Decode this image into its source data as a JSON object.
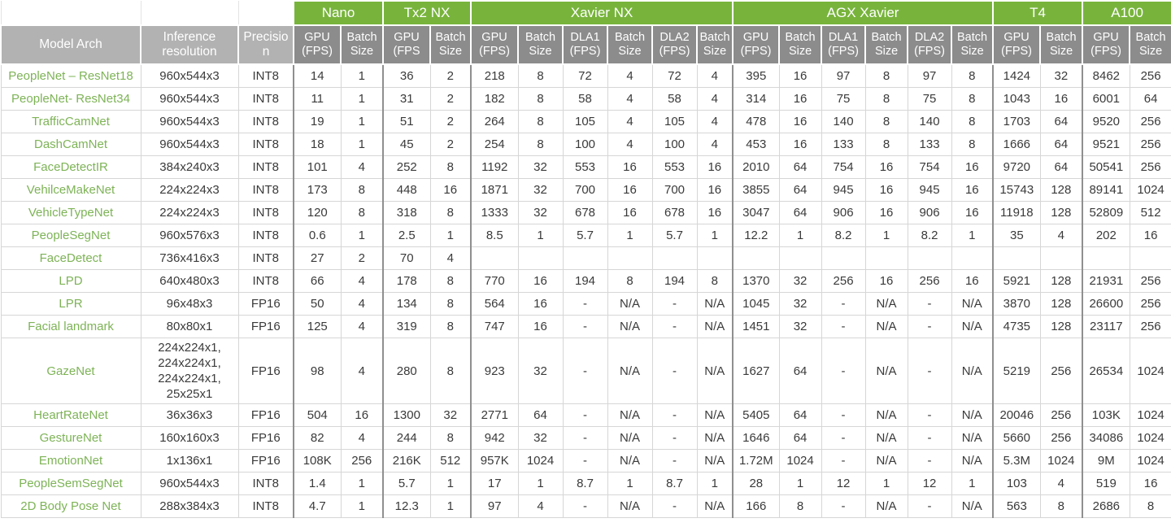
{
  "colors": {
    "header_green": "#78b43c",
    "subheader_gray": "#8c8c8c",
    "lightheader_gray": "#b2b2b2",
    "model_text_green": "#7db356",
    "data_text": "#3a3a3a"
  },
  "table": {
    "static_headers": [
      "Model Arch",
      "Inference resolution",
      "Precision"
    ],
    "groups": [
      {
        "label": "Nano",
        "cols": 2
      },
      {
        "label": "Tx2 NX",
        "cols": 2
      },
      {
        "label": "Xavier NX",
        "cols": 6
      },
      {
        "label": "AGX Xavier",
        "cols": 6
      },
      {
        "label": "T4",
        "cols": 2
      },
      {
        "label": "A100",
        "cols": 2
      }
    ],
    "sub_headers": [
      "GPU (FPS)",
      "Batch Size",
      "GPU (FPS",
      "Batch Size",
      "GPU (FPS)",
      "Batch Size",
      "DLA1 (FPS)",
      "Batch Size",
      "DLA2 (FPS)",
      "Batch Size",
      "GPU (FPS)",
      "Batch Size",
      "DLA1 (FPS)",
      "Batch Size",
      "DLA2 (FPS)",
      "Batch Size",
      "GPU (FPS)",
      "Batch Size",
      "GPU (FPS)",
      "Batch Size"
    ],
    "rows": [
      {
        "model": "PeopleNet – ResNet18",
        "resolution": "960x544x3",
        "precision": "INT8",
        "values": [
          "14",
          "1",
          "36",
          "2",
          "218",
          "8",
          "72",
          "4",
          "72",
          "4",
          "395",
          "16",
          "97",
          "8",
          "97",
          "8",
          "1424",
          "32",
          "8462",
          "256"
        ]
      },
      {
        "model": "PeopleNet- ResNet34",
        "resolution": "960x544x3",
        "precision": "INT8",
        "values": [
          "11",
          "1",
          "31",
          "2",
          "182",
          "8",
          "58",
          "4",
          "58",
          "4",
          "314",
          "16",
          "75",
          "8",
          "75",
          "8",
          "1043",
          "16",
          "6001",
          "64"
        ]
      },
      {
        "model": "TrafficCamNet",
        "resolution": "960x544x3",
        "precision": "INT8",
        "values": [
          "19",
          "1",
          "51",
          "2",
          "264",
          "8",
          "105",
          "4",
          "105",
          "4",
          "478",
          "16",
          "140",
          "8",
          "140",
          "8",
          "1703",
          "64",
          "9520",
          "256"
        ]
      },
      {
        "model": "DashCamNet",
        "resolution": "960x544x3",
        "precision": "INT8",
        "values": [
          "18",
          "1",
          "45",
          "2",
          "254",
          "8",
          "100",
          "4",
          "100",
          "4",
          "453",
          "16",
          "133",
          "8",
          "133",
          "8",
          "1666",
          "64",
          "9521",
          "256"
        ]
      },
      {
        "model": "FaceDetectIR",
        "resolution": "384x240x3",
        "precision": "INT8",
        "values": [
          "101",
          "4",
          "252",
          "8",
          "1192",
          "32",
          "553",
          "16",
          "553",
          "16",
          "2010",
          "64",
          "754",
          "16",
          "754",
          "16",
          "9720",
          "64",
          "50541",
          "256"
        ]
      },
      {
        "model": "VehilceMakeNet",
        "resolution": "224x224x3",
        "precision": "INT8",
        "values": [
          "173",
          "8",
          "448",
          "16",
          "1871",
          "32",
          "700",
          "16",
          "700",
          "16",
          "3855",
          "64",
          "945",
          "16",
          "945",
          "16",
          "15743",
          "128",
          "89141",
          "1024"
        ]
      },
      {
        "model": "VehicleTypeNet",
        "resolution": "224x224x3",
        "precision": "INT8",
        "values": [
          "120",
          "8",
          "318",
          "8",
          "1333",
          "32",
          "678",
          "16",
          "678",
          "16",
          "3047",
          "64",
          "906",
          "16",
          "906",
          "16",
          "11918",
          "128",
          "52809",
          "512"
        ]
      },
      {
        "model": "PeopleSegNet",
        "resolution": "960x576x3",
        "precision": "INT8",
        "values": [
          "0.6",
          "1",
          "2.5",
          "1",
          "8.5",
          "1",
          "5.7",
          "1",
          "5.7",
          "1",
          "12.2",
          "1",
          "8.2",
          "1",
          "8.2",
          "1",
          "35",
          "4",
          "202",
          "16"
        ]
      },
      {
        "model": "FaceDetect",
        "resolution": "736x416x3",
        "precision": "INT8",
        "values": [
          "27",
          "2",
          "70",
          "4",
          "",
          "",
          "",
          "",
          "",
          "",
          "",
          "",
          "",
          "",
          "",
          "",
          "",
          "",
          "",
          ""
        ]
      },
      {
        "model": "LPD",
        "resolution": "640x480x3",
        "precision": "INT8",
        "values": [
          "66",
          "4",
          "178",
          "8",
          "770",
          "16",
          "194",
          "8",
          "194",
          "8",
          "1370",
          "32",
          "256",
          "16",
          "256",
          "16",
          "5921",
          "128",
          "21931",
          "256"
        ]
      },
      {
        "model": "LPR",
        "resolution": "96x48x3",
        "precision": "FP16",
        "values": [
          "50",
          "4",
          "134",
          "8",
          "564",
          "16",
          "-",
          "N/A",
          "-",
          "N/A",
          "1045",
          "32",
          "-",
          "N/A",
          "-",
          "N/A",
          "3870",
          "128",
          "26600",
          "256"
        ]
      },
      {
        "model": "Facial landmark",
        "resolution": "80x80x1",
        "precision": "FP16",
        "values": [
          "125",
          "4",
          "319",
          "8",
          "747",
          "16",
          "-",
          "N/A",
          "-",
          "N/A",
          "1451",
          "32",
          "-",
          "N/A",
          "-",
          "N/A",
          "4735",
          "128",
          "23117",
          "256"
        ]
      },
      {
        "model": "GazeNet",
        "resolution": "224x224x1,\n224x224x1,\n224x224x1,\n25x25x1",
        "precision": "FP16",
        "values": [
          "98",
          "4",
          "280",
          "8",
          "923",
          "32",
          "-",
          "N/A",
          "-",
          "N/A",
          "1627",
          "64",
          "-",
          "N/A",
          "-",
          "N/A",
          "5219",
          "256",
          "26534",
          "1024"
        ]
      },
      {
        "model": "HeartRateNet",
        "resolution": "36x36x3",
        "precision": "FP16",
        "values": [
          "504",
          "16",
          "1300",
          "32",
          "2771",
          "64",
          "-",
          "N/A",
          "-",
          "N/A",
          "5405",
          "64",
          "-",
          "N/A",
          "-",
          "N/A",
          "20046",
          "256",
          "103K",
          "1024"
        ]
      },
      {
        "model": "GestureNet",
        "resolution": "160x160x3",
        "precision": "FP16",
        "values": [
          "82",
          "4",
          "244",
          "8",
          "942",
          "32",
          "-",
          "N/A",
          "-",
          "N/A",
          "1646",
          "64",
          "-",
          "N/A",
          "-",
          "N/A",
          "5660",
          "256",
          "34086",
          "1024"
        ]
      },
      {
        "model": "EmotionNet",
        "resolution": "1x136x1",
        "precision": "FP16",
        "values": [
          "108K",
          "256",
          "216K",
          "512",
          "957K",
          "1024",
          "-",
          "N/A",
          "-",
          "N/A",
          "1.72M",
          "1024",
          "-",
          "N/A",
          "-",
          "N/A",
          "5.3M",
          "1024",
          "9M",
          "1024"
        ]
      },
      {
        "model": "PeopleSemSegNet",
        "resolution": "960x544x3",
        "precision": "INT8",
        "values": [
          "1.4",
          "1",
          "5.7",
          "1",
          "17",
          "1",
          "8.7",
          "1",
          "8.7",
          "1",
          "28",
          "1",
          "12",
          "1",
          "12",
          "1",
          "103",
          "4",
          "519",
          "16"
        ]
      },
      {
        "model": "2D Body Pose Net",
        "resolution": "288x384x3",
        "precision": "INT8",
        "values": [
          "4.7",
          "1",
          "12.3",
          "1",
          "97",
          "4",
          "-",
          "N/A",
          "-",
          "N/A",
          "166",
          "8",
          "-",
          "N/A",
          "-",
          "N/A",
          "563",
          "8",
          "2686",
          "8"
        ]
      }
    ]
  }
}
